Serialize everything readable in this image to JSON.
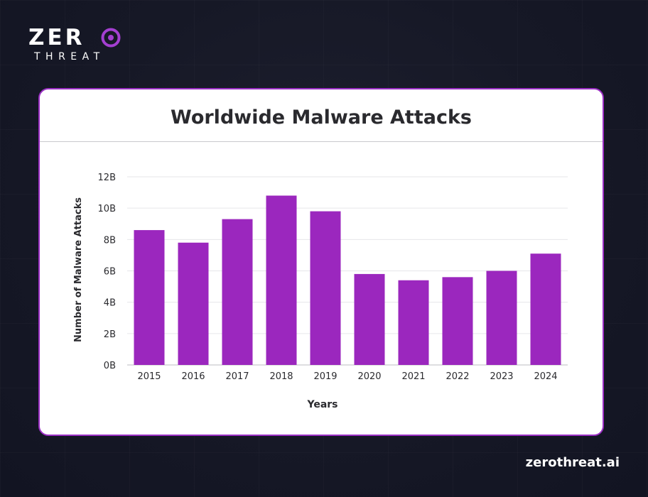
{
  "brand": {
    "logo_main": "ZER",
    "logo_sub": "THREAT",
    "accent_color": "#9b27be",
    "website": "zerothreat.ai"
  },
  "chart_data": {
    "type": "bar",
    "title": "Worldwide Malware Attacks",
    "xlabel": "Years",
    "ylabel": "Number of Malware Attacks",
    "categories": [
      "2015",
      "2016",
      "2017",
      "2018",
      "2019",
      "2020",
      "2021",
      "2022",
      "2023",
      "2024"
    ],
    "values": [
      8.6,
      7.8,
      9.3,
      10.8,
      9.8,
      5.8,
      5.4,
      5.6,
      6.0,
      7.1
    ],
    "unit": "B",
    "ylim": [
      0,
      12
    ],
    "yticks": [
      "0B",
      "2B",
      "4B",
      "6B",
      "8B",
      "10B",
      "12B"
    ],
    "grid": true,
    "bar_color": "#9b27be"
  }
}
